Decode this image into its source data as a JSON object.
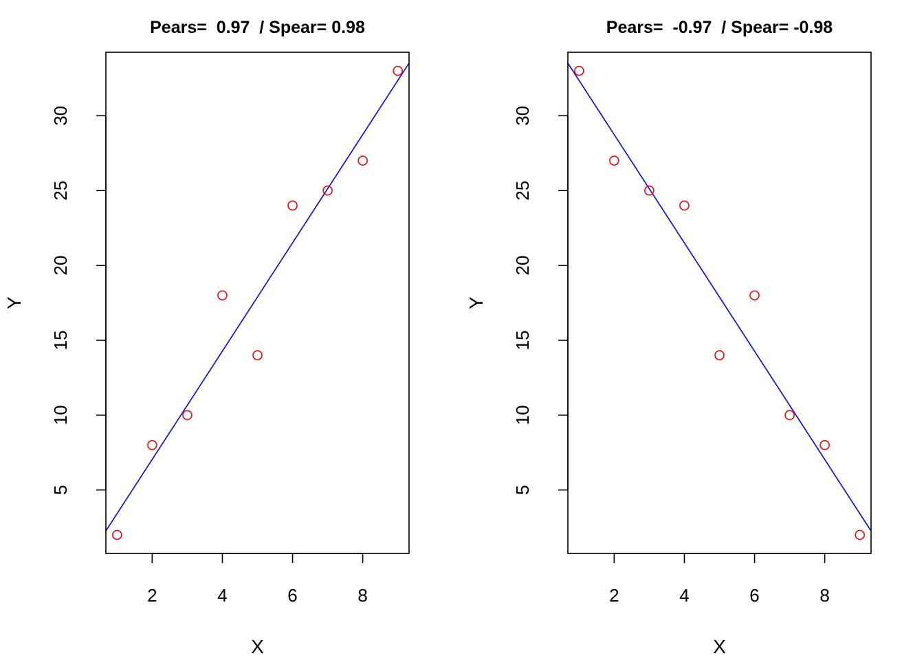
{
  "chart_data": [
    {
      "type": "scatter",
      "title": "Pears=  0.97  / Spear= 0.98",
      "xlabel": "X",
      "ylabel": "Y",
      "xlim": [
        0.68,
        9.32
      ],
      "ylim": [
        0.76,
        34.24
      ],
      "xticks": [
        2,
        4,
        6,
        8
      ],
      "yticks": [
        5,
        10,
        15,
        20,
        25,
        30
      ],
      "x": [
        1,
        2,
        3,
        4,
        5,
        6,
        7,
        8,
        9
      ],
      "y": [
        2,
        8,
        10,
        18,
        14,
        24,
        25,
        27,
        33
      ],
      "point_color": "#ff0000",
      "fit_line": {
        "intercept": -0.194,
        "slope": 3.617,
        "color": "#0000ff"
      }
    },
    {
      "type": "scatter",
      "title": "Pears=  -0.97  / Spear= -0.98",
      "xlabel": "X",
      "ylabel": "Y",
      "xlim": [
        0.68,
        9.32
      ],
      "ylim": [
        0.76,
        34.24
      ],
      "xticks": [
        2,
        4,
        6,
        8
      ],
      "yticks": [
        5,
        10,
        15,
        20,
        25,
        30
      ],
      "x": [
        1,
        2,
        3,
        4,
        5,
        6,
        7,
        8,
        9
      ],
      "y": [
        33,
        27,
        25,
        24,
        14,
        18,
        10,
        8,
        2
      ],
      "point_color": "#ff0000",
      "fit_line": {
        "intercept": 35.972,
        "slope": -3.617,
        "color": "#0000ff"
      }
    }
  ]
}
